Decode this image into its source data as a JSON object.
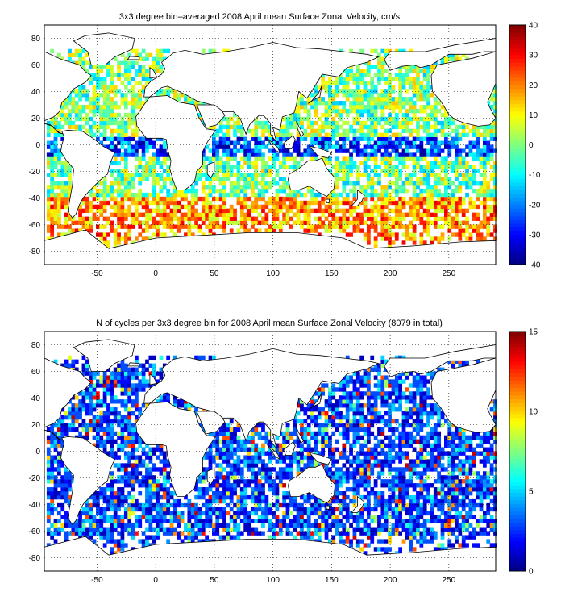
{
  "chart_data": [
    {
      "type": "heatmap",
      "title": "3x3 degree bin–averaged 2008 April mean Surface Zonal Velocity, cm/s",
      "xlim": [
        -95,
        290
      ],
      "ylim": [
        -90,
        90
      ],
      "x_ticks": [
        "-50",
        "0",
        "50",
        "100",
        "150",
        "200",
        "250"
      ],
      "y_ticks": [
        "80",
        "60",
        "40",
        "20",
        "0",
        "-20",
        "-40",
        "-60",
        "-80"
      ],
      "colorbar": {
        "min": -40,
        "max": 40,
        "ticks": [
          "40",
          "30",
          "20",
          "10",
          "0",
          "-10",
          "-20",
          "-30",
          "-40"
        ]
      },
      "colormap": "jet",
      "grid": "dotted",
      "bin_size_deg": 3
    },
    {
      "type": "heatmap",
      "title": "N of cycles per 3x3 degree bin for 2008 April mean Surface Zonal Velocity (8079 in total)",
      "xlim": [
        -95,
        290
      ],
      "ylim": [
        -90,
        90
      ],
      "x_ticks": [
        "-50",
        "0",
        "50",
        "100",
        "150",
        "200",
        "250"
      ],
      "y_ticks": [
        "80",
        "60",
        "40",
        "20",
        "0",
        "-20",
        "-40",
        "-60",
        "-80"
      ],
      "colorbar": {
        "min": 0,
        "max": 15,
        "ticks": [
          "15",
          "10",
          "5",
          "0"
        ]
      },
      "colormap": "jet",
      "grid": "dotted",
      "bin_size_deg": 3
    }
  ]
}
